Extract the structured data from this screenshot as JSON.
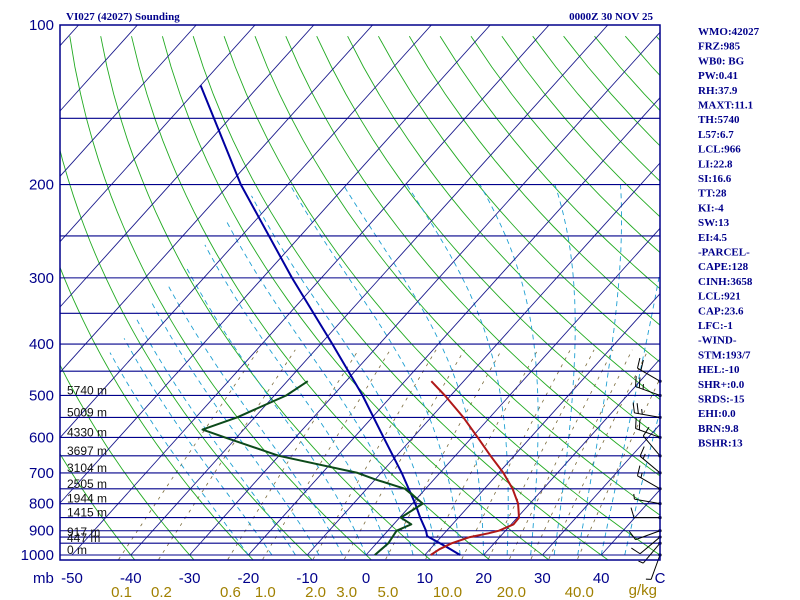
{
  "header": {
    "title": "VI027 (42027) Sounding",
    "datetime": "0000Z 30 NOV 25"
  },
  "side_panel": [
    "WMO:42027",
    "FRZ:985",
    "WB0: BG",
    "PW:0.41",
    "RH:37.9",
    "MAXT:11.1",
    "TH:5740",
    "L57:6.7",
    "LCL:966",
    "LI:22.8",
    "SI:16.6",
    "TT:28",
    "KI:-4",
    "SW:13",
    "EI:4.5",
    "-PARCEL-",
    "CAPE:128",
    "CINH:3658",
    "LCL:921",
    "CAP:23.6",
    "LFC:-1",
    "-WIND-",
    "STM:193/7",
    "HEL:-10",
    "SHR+:0.0",
    "SRDS:-15",
    "EHI:0.0",
    "BRN:9.8",
    "BSHR:13"
  ],
  "colors": {
    "frame": "#00008b",
    "isobar": "#00008b",
    "isotherm": "#1a1a8c",
    "dry_adiabat": "#22aa22",
    "moist_adiabat": "#1e9fd2",
    "mixing_ratio": "#7a6a3a",
    "temperature": "#b01818",
    "dewpoint": "#0c4a1a",
    "parcel": "#0000a0",
    "wind": "#000000"
  },
  "chart_data": {
    "type": "skew-t",
    "pressure_axis_label": "mb",
    "pressure_ticks": [
      100,
      200,
      300,
      400,
      500,
      600,
      700,
      800,
      900,
      1000
    ],
    "p_range": [
      1000,
      100
    ],
    "temperature_ticks": [
      -50,
      -40,
      -30,
      -20,
      -10,
      0,
      10,
      20,
      30,
      40
    ],
    "temperature_tick_labels": [
      "-50",
      "-40",
      "-30",
      "-20",
      "-10",
      "0",
      "10",
      "20",
      "30",
      "40",
      "C"
    ],
    "mixing_ratio_labels": [
      "0.1",
      "0.2",
      "0.6",
      "1.0",
      "2.0",
      "3.0",
      "5.0",
      "10.0",
      "20.0",
      "40.0"
    ],
    "mixing_ratio_unit": "g/kg",
    "isobars_plotted": [
      150,
      200,
      250,
      300,
      350,
      400,
      450,
      500,
      550,
      600,
      650,
      700,
      750,
      800,
      850,
      900,
      925,
      950,
      1000
    ],
    "height_labels": [
      {
        "p": 1000,
        "text": "0 m"
      },
      {
        "p": 950,
        "text": "447 m"
      },
      {
        "p": 925,
        "text": "917 m"
      },
      {
        "p": 850,
        "text": "1415 m"
      },
      {
        "p": 800,
        "text": "1944 m"
      },
      {
        "p": 750,
        "text": "2505 m"
      },
      {
        "p": 700,
        "text": "3104 m"
      },
      {
        "p": 650,
        "text": "3697 m"
      },
      {
        "p": 600,
        "text": "4330 m"
      },
      {
        "p": 550,
        "text": "5009 m"
      },
      {
        "p": 500,
        "text": "5740 m"
      }
    ],
    "temperature_profile": [
      {
        "p": 1000,
        "t": 11.0
      },
      {
        "p": 975,
        "t": 11.6
      },
      {
        "p": 950,
        "t": 12.8
      },
      {
        "p": 925,
        "t": 14.9
      },
      {
        "p": 910,
        "t": 17.5
      },
      {
        "p": 900,
        "t": 18.9
      },
      {
        "p": 875,
        "t": 20.4
      },
      {
        "p": 850,
        "t": 20.3
      },
      {
        "p": 800,
        "t": 18.0
      },
      {
        "p": 750,
        "t": 14.8
      },
      {
        "p": 700,
        "t": 10.8
      },
      {
        "p": 650,
        "t": 6.0
      },
      {
        "p": 600,
        "t": 1.0
      },
      {
        "p": 550,
        "t": -4.5
      },
      {
        "p": 500,
        "t": -11.0
      },
      {
        "p": 470,
        "t": -15.5
      }
    ],
    "dewpoint_profile": [
      {
        "p": 1000,
        "t": 1.5
      },
      {
        "p": 950,
        "t": 2.0
      },
      {
        "p": 900,
        "t": 1.5
      },
      {
        "p": 875,
        "t": 3.0
      },
      {
        "p": 850,
        "t": 0.2
      },
      {
        "p": 800,
        "t": 1.8
      },
      {
        "p": 750,
        "t": -3.5
      },
      {
        "p": 720,
        "t": -10.0
      },
      {
        "p": 700,
        "t": -14.0
      },
      {
        "p": 650,
        "t": -30.0
      },
      {
        "p": 600,
        "t": -42.0
      },
      {
        "p": 580,
        "t": -47.0
      },
      {
        "p": 550,
        "t": -43.0
      },
      {
        "p": 500,
        "t": -38.0
      },
      {
        "p": 470,
        "t": -36.5
      }
    ],
    "parcel_profile": [
      {
        "p": 1000,
        "t": 16.0
      },
      {
        "p": 966,
        "t": 12.5
      },
      {
        "p": 921,
        "t": 7.5
      },
      {
        "p": 900,
        "t": 6.5
      },
      {
        "p": 850,
        "t": 3.5
      },
      {
        "p": 800,
        "t": 0.5
      },
      {
        "p": 700,
        "t": -6.5
      },
      {
        "p": 600,
        "t": -15.0
      },
      {
        "p": 500,
        "t": -25.0
      },
      {
        "p": 400,
        "t": -38.0
      },
      {
        "p": 300,
        "t": -55.0
      },
      {
        "p": 200,
        "t": -78.0
      },
      {
        "p": 130,
        "t": -100.0
      }
    ],
    "wind_barbs": [
      {
        "p": 1000,
        "dir": 200,
        "spd": 5
      },
      {
        "p": 950,
        "dir": 220,
        "spd": 5
      },
      {
        "p": 925,
        "dir": 230,
        "spd": 10
      },
      {
        "p": 900,
        "dir": 250,
        "spd": 10
      },
      {
        "p": 850,
        "dir": 270,
        "spd": 10
      },
      {
        "p": 800,
        "dir": 280,
        "spd": 5
      },
      {
        "p": 750,
        "dir": 300,
        "spd": 15
      },
      {
        "p": 700,
        "dir": 310,
        "spd": 15
      },
      {
        "p": 650,
        "dir": 320,
        "spd": 10
      },
      {
        "p": 600,
        "dir": 290,
        "spd": 20
      },
      {
        "p": 550,
        "dir": 280,
        "spd": 25
      },
      {
        "p": 500,
        "dir": 290,
        "spd": 25
      },
      {
        "p": 470,
        "dir": 300,
        "spd": 20
      }
    ]
  }
}
